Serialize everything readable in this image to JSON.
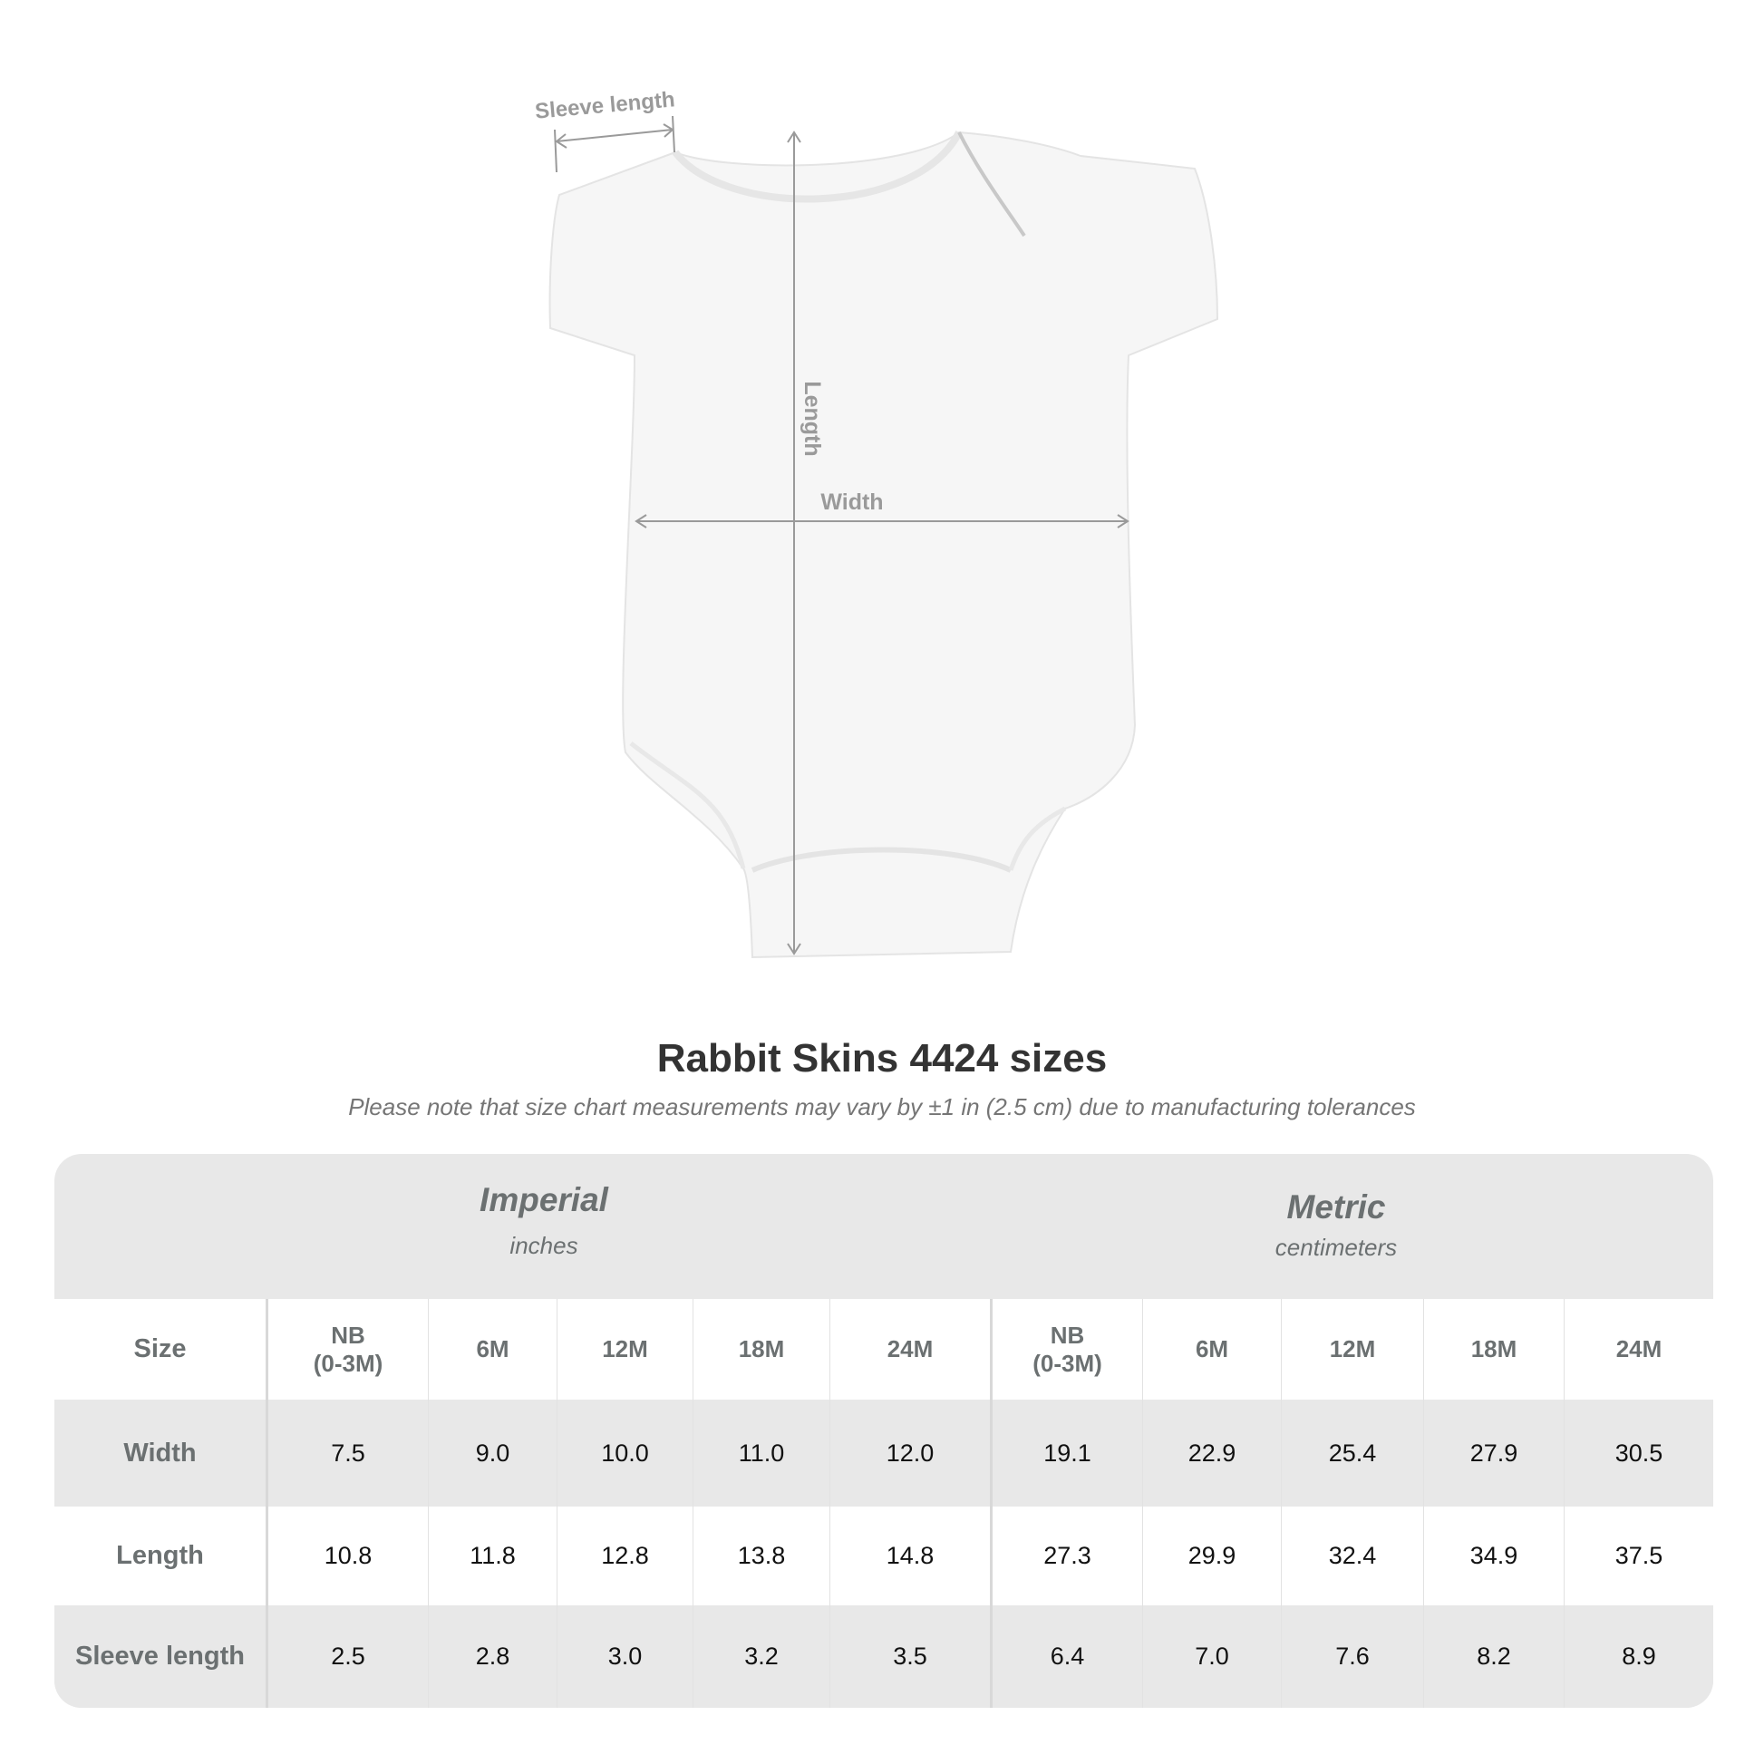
{
  "diagram": {
    "labels": {
      "sleeve": "Sleeve length",
      "length": "Length",
      "width": "Width"
    },
    "garment_color": "#f6f6f6",
    "line_color": "#9a9a9a"
  },
  "title": "Rabbit Skins 4424 sizes",
  "note": "Please note that size chart measurements may vary by ±1 in (2.5 cm) due to manufacturing tolerances",
  "table": {
    "imperial": {
      "name": "Imperial",
      "unit": "inches"
    },
    "metric": {
      "name": "Metric",
      "unit": "centimeters"
    },
    "size_label": "Size",
    "sizes": [
      "NB\n(0-3M)",
      "6M",
      "12M",
      "18M",
      "24M"
    ],
    "rows": [
      {
        "label": "Width",
        "imperial": [
          "7.5",
          "9.0",
          "10.0",
          "11.0",
          "12.0"
        ],
        "metric": [
          "19.1",
          "22.9",
          "25.4",
          "27.9",
          "30.5"
        ]
      },
      {
        "label": "Length",
        "imperial": [
          "10.8",
          "11.8",
          "12.8",
          "13.8",
          "14.8"
        ],
        "metric": [
          "27.3",
          "29.9",
          "32.4",
          "34.9",
          "37.5"
        ]
      },
      {
        "label": "Sleeve length",
        "imperial": [
          "2.5",
          "2.8",
          "3.0",
          "3.2",
          "3.5"
        ],
        "metric": [
          "6.4",
          "7.0",
          "7.6",
          "8.2",
          "8.9"
        ]
      }
    ],
    "header_bg": "#e8e8e8",
    "header_text_color": "#6b7071"
  }
}
